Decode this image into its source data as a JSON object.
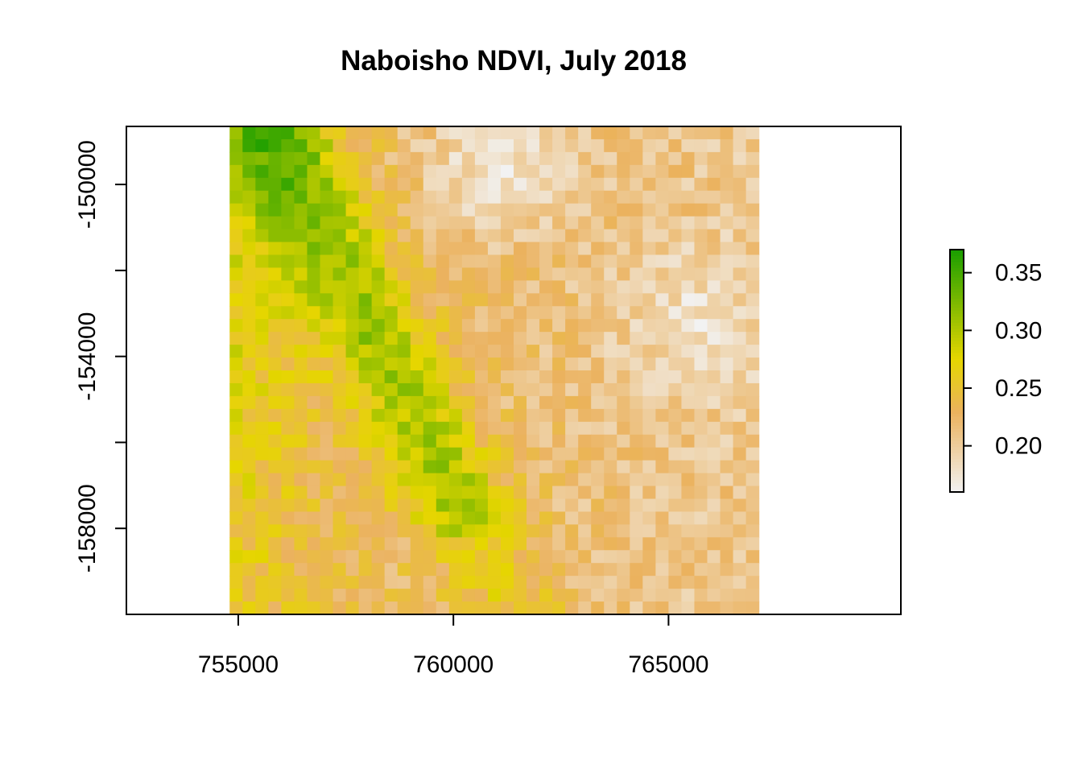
{
  "chart_data": {
    "type": "heatmap",
    "title": "Naboisho NDVI, July 2018",
    "xlabel": "",
    "ylabel": "",
    "x_ticks": [
      755000,
      760000,
      765000
    ],
    "x_tick_labels": [
      "755000",
      "760000",
      "765000"
    ],
    "y_ticks": [
      -150000,
      -152000,
      -154000,
      -156000,
      -158000
    ],
    "y_tick_labels": [
      "-150000",
      "",
      "-154000",
      "",
      "-158000"
    ],
    "xlim": [
      752400,
      770400
    ],
    "ylim": [
      -160000,
      -148650
    ],
    "raster_extent": {
      "xmin": 754800,
      "xmax": 767100,
      "ymin": -160000,
      "ymax": -148650
    },
    "grid_cols": 41,
    "grid_rows": 38,
    "value_range": [
      0.16,
      0.37
    ],
    "legend_ticks": [
      0.35,
      0.3,
      0.25,
      0.2
    ],
    "legend_tick_labels": [
      "0.35",
      "0.30",
      "0.25",
      "0.20"
    ],
    "legend_position": "right",
    "colors": [
      "#F2F2F2",
      "#EBB25E",
      "#E6D600",
      "#1A9E00"
    ],
    "grid": false,
    "note_values": "cell values approximated from the color field"
  }
}
